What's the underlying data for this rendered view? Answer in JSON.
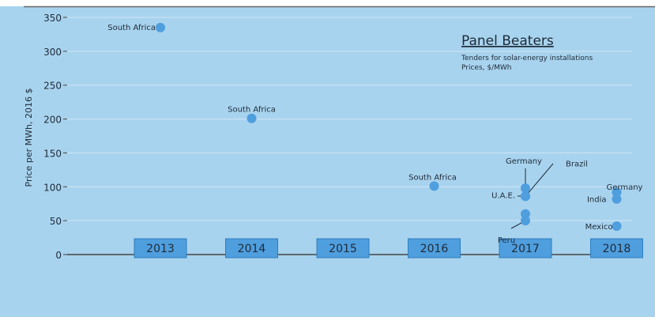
{
  "colors": {
    "background": "#a8d3ee",
    "top_rule": "#666666",
    "gridline": "#cfe6f6",
    "axis": "#444444",
    "point": "#4f9ede",
    "year_box": "#4f9ede",
    "year_box_border": "#2e7fbf",
    "label_text": "#1e2b38",
    "leader_line": "#1e2b38"
  },
  "annotation": {
    "title": "Panel Beaters",
    "subtitle_line1": "Tenders for solar-energy installations",
    "subtitle_line2": "Prices, $/MWh"
  },
  "chart_data": {
    "type": "scatter",
    "ylabel": "Price per MWh, 2016 $",
    "ylim": [
      0,
      350
    ],
    "yticks": [
      0,
      50,
      100,
      150,
      200,
      250,
      300,
      350
    ],
    "grid": true,
    "x_categories": [
      "2013",
      "2014",
      "2015",
      "2016",
      "2017",
      "2018"
    ],
    "points": [
      {
        "label": "South Africa",
        "year": 2013,
        "y": 335
      },
      {
        "label": "South Africa",
        "year": 2014,
        "y": 201
      },
      {
        "label": "South Africa",
        "year": 2016,
        "y": 101
      },
      {
        "label": "Germany",
        "year": 2017,
        "y": 98
      },
      {
        "label": "Brazil",
        "year": 2017,
        "y": 86
      },
      {
        "label": "U.A.E.",
        "year": 2017,
        "y": 86
      },
      {
        "label": "",
        "year": 2017,
        "y": 60
      },
      {
        "label": "Peru",
        "year": 2017,
        "y": 50
      },
      {
        "label": "Germany",
        "year": 2018,
        "y": 92
      },
      {
        "label": "India",
        "year": 2018,
        "y": 82
      },
      {
        "label": "Mexico",
        "year": 2018,
        "y": 42
      }
    ]
  }
}
